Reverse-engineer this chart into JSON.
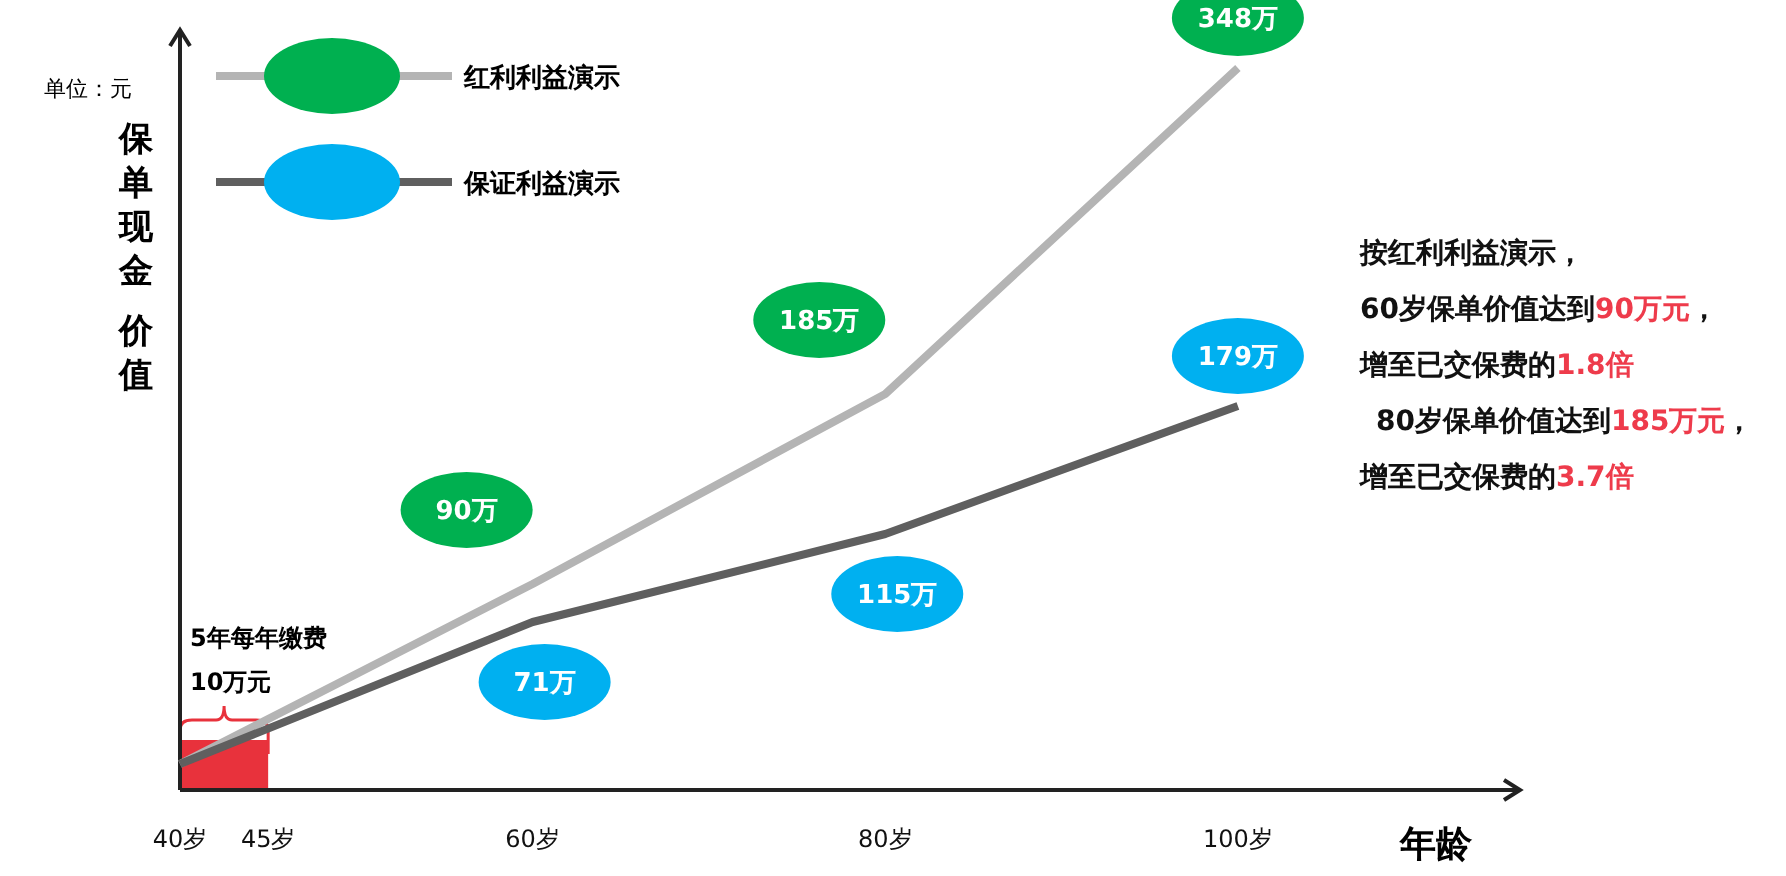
{
  "chart_data": {
    "type": "line",
    "xlabel": "年龄",
    "ylabel": "保单现金价值",
    "x": [
      40,
      60,
      80,
      100
    ],
    "xlim": [
      40,
      116
    ],
    "ylim": [
      -13,
      367
    ],
    "xticks": [
      {
        "value": 40,
        "label": "40岁"
      },
      {
        "value": 45,
        "label": "45岁"
      },
      {
        "value": 60,
        "label": "60岁"
      },
      {
        "value": 80,
        "label": "80岁"
      },
      {
        "value": 100,
        "label": "100岁"
      }
    ],
    "tick_labels": "x",
    "legend": "top left",
    "grid": false,
    "marker": "none",
    "line_style": "solid",
    "series": [
      {
        "name": "红利利益演示",
        "color": "#b4b4b4",
        "values": [
          0,
          90,
          185,
          348
        ],
        "value_labels": [
          null,
          "90万",
          "185万",
          "348万"
        ]
      },
      {
        "name": "保证利益演示",
        "color": "#5f5f5f",
        "values": [
          0,
          71,
          115,
          179
        ],
        "value_labels": [
          null,
          "71万",
          "115万",
          "179万"
        ]
      }
    ],
    "bands": [
      {
        "axis": "x",
        "from": 40,
        "to": 45,
        "label": "5年每年缴费\n10万元",
        "color": "#e8323c"
      }
    ],
    "annotations": [
      "单位：元",
      "按红利利益演示，",
      "60岁保单价值达到90万元，",
      "增至已交保费的1.8倍",
      "80岁保单价值达到185万元，",
      "增至已交保费的3.7倍"
    ]
  }
}
